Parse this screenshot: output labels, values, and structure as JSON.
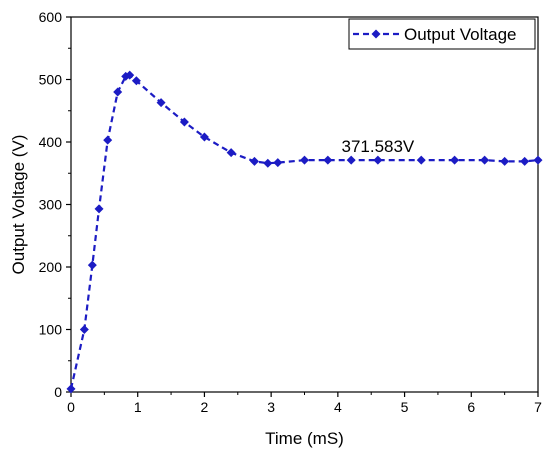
{
  "chart_data": {
    "type": "line",
    "title": "",
    "xlabel": "Time (mS)",
    "ylabel": "Output Voltage (V)",
    "xlim": [
      0,
      7
    ],
    "ylim": [
      0,
      600
    ],
    "xticks": [
      0,
      1,
      2,
      3,
      4,
      5,
      6,
      7
    ],
    "yticks": [
      0,
      100,
      200,
      300,
      400,
      500,
      600
    ],
    "grid": false,
    "legend_position": "top-right",
    "annotation": {
      "text": "371.583V",
      "x": 4.6,
      "y": 371.583
    },
    "series": [
      {
        "name": "Output Voltage",
        "color": "#1c1cc4",
        "line_style": "dashed",
        "marker": "diamond",
        "x": [
          0.0,
          0.2,
          0.32,
          0.42,
          0.55,
          0.7,
          0.82,
          0.88,
          0.98,
          1.35,
          1.7,
          2.0,
          2.4,
          2.75,
          2.95,
          3.1,
          3.5,
          3.85,
          4.2,
          4.6,
          5.25,
          5.75,
          6.2,
          6.5,
          6.8,
          7.0
        ],
        "y": [
          5,
          100,
          203,
          293,
          403,
          480,
          505,
          507,
          498,
          463,
          432,
          408,
          383,
          369,
          366,
          367,
          371,
          371,
          371,
          371,
          371,
          371,
          371,
          369,
          369,
          371
        ]
      }
    ]
  }
}
